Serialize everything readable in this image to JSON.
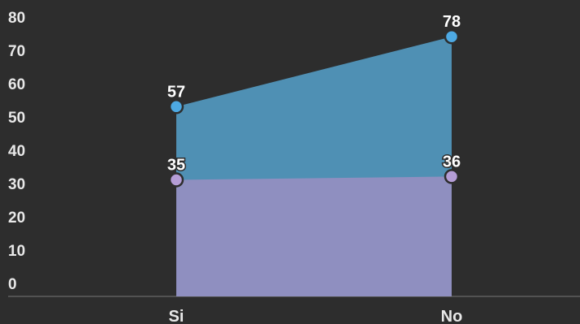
{
  "chart_data": {
    "type": "area",
    "categories": [
      "Si",
      "No"
    ],
    "series": [
      {
        "color": "#4f90b4",
        "point_color": "#4da9e3",
        "values": [
          57,
          78
        ]
      },
      {
        "color": "#8f8fc0",
        "point_color": "#b49dd6",
        "values": [
          35,
          36
        ]
      }
    ],
    "ylim": [
      0,
      80
    ],
    "yticks": [
      0,
      10,
      20,
      30,
      40,
      50,
      60,
      70,
      80
    ],
    "grid": false
  }
}
